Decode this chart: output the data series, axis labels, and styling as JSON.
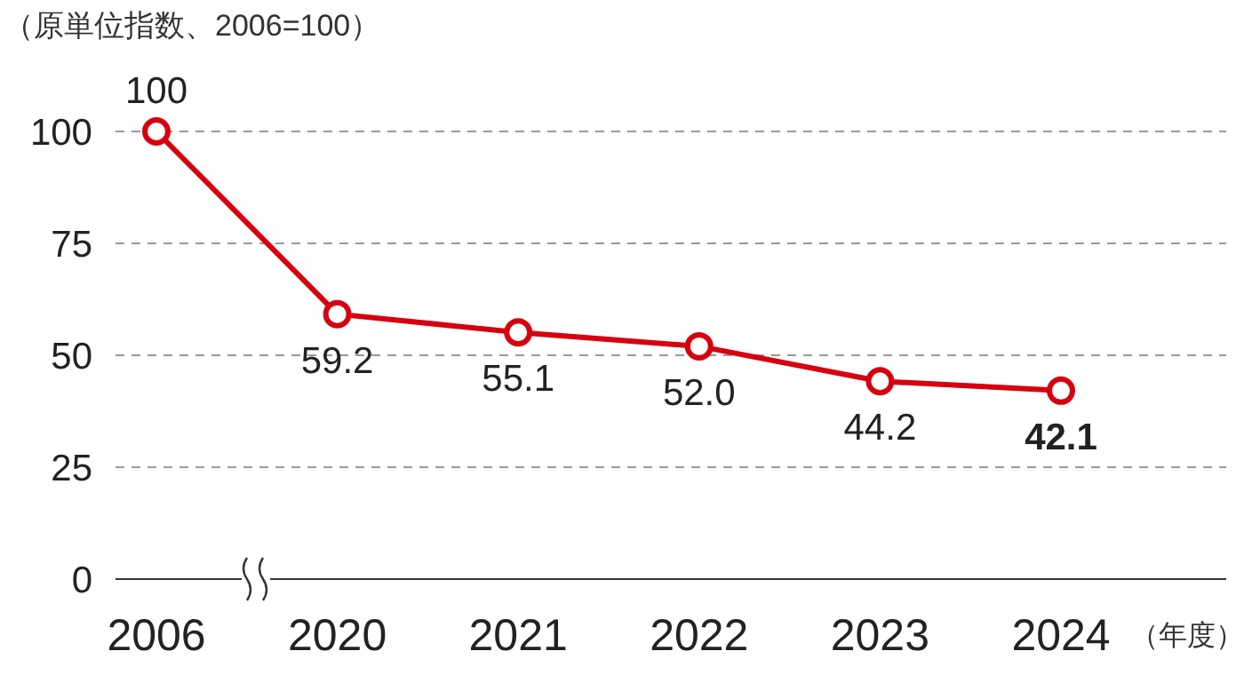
{
  "chart_data": {
    "type": "line",
    "ylabel": "（原単位指数、2006=100）",
    "xlabel": "（年度）",
    "categories": [
      "2006",
      "2020",
      "2021",
      "2022",
      "2023",
      "2024"
    ],
    "series": [
      {
        "color": "#d7000f",
        "values": [
          100,
          59.2,
          55.1,
          52.0,
          44.2,
          42.1
        ],
        "value_labels": [
          "100",
          "59.2",
          "55.1",
          "52.0",
          "44.2",
          "42.1"
        ]
      }
    ],
    "ylim": [
      0,
      100
    ],
    "yticks": [
      0,
      25,
      50,
      75,
      100
    ],
    "grid": "y",
    "marker": "circle",
    "line_style": "solid"
  }
}
